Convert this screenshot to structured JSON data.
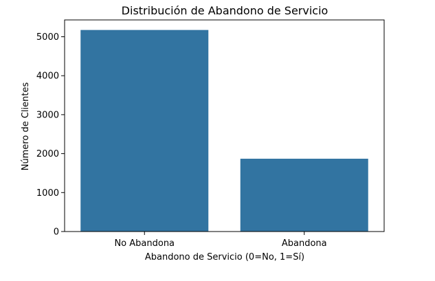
{
  "chart_data": {
    "type": "bar",
    "title": "Distribución de Abandono de Servicio",
    "xlabel": "Abandono de Servicio (0=No, 1=Sí)",
    "ylabel": "Número de Clientes",
    "categories": [
      "No Abandona",
      "Abandona"
    ],
    "values": [
      5174,
      1869
    ],
    "ylim": [
      0,
      5432
    ],
    "yticks": [
      0,
      1000,
      2000,
      3000,
      4000,
      5000
    ],
    "grid": false,
    "bar_color": "#3274a1"
  }
}
